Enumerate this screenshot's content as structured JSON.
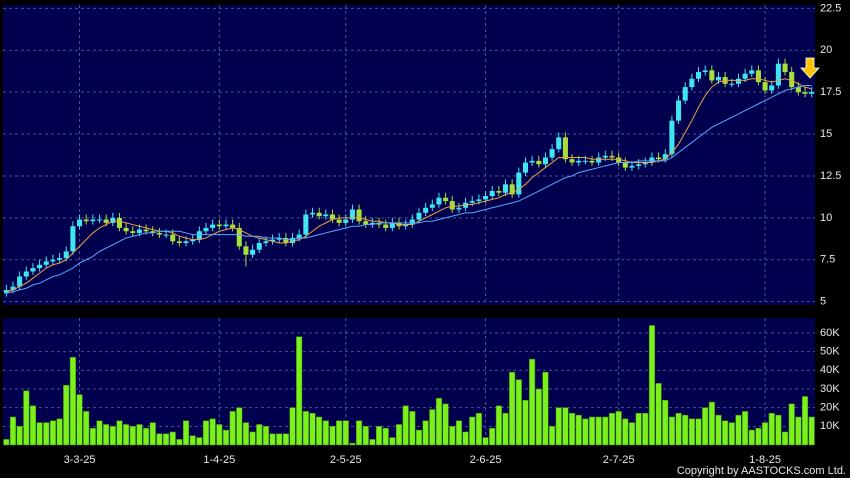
{
  "chart_data": {
    "type": "candlestick",
    "categories": [
      null,
      null,
      null,
      null,
      null,
      null,
      null,
      null,
      null,
      null,
      null,
      "3-3-25",
      null,
      null,
      null,
      null,
      null,
      null,
      null,
      null,
      null,
      null,
      null,
      null,
      null,
      null,
      null,
      null,
      null,
      null,
      null,
      null,
      "1-4-25",
      null,
      null,
      null,
      null,
      null,
      null,
      null,
      null,
      null,
      null,
      null,
      null,
      null,
      null,
      null,
      null,
      null,
      null,
      "2-5-25",
      null,
      null,
      null,
      null,
      null,
      null,
      null,
      null,
      null,
      null,
      null,
      null,
      null,
      null,
      null,
      null,
      null,
      null,
      null,
      null,
      "2-6-25",
      null,
      null,
      null,
      null,
      null,
      null,
      null,
      null,
      null,
      null,
      null,
      null,
      null,
      null,
      null,
      null,
      null,
      null,
      null,
      "2-7-25",
      null,
      null,
      null,
      null,
      null,
      null,
      null,
      null,
      null,
      null,
      null,
      null,
      null,
      null,
      null,
      null,
      null,
      null,
      null,
      null,
      null,
      "1-8-25",
      null,
      null,
      null,
      null,
      null,
      null,
      null
    ],
    "open": [
      5.5,
      5.7,
      5.9,
      6.5,
      6.8,
      7.0,
      7.2,
      7.4,
      7.5,
      7.6,
      8.0,
      9.5,
      9.9,
      9.8,
      9.9,
      9.9,
      9.7,
      10.0,
      9.4,
      9.2,
      9.1,
      9.3,
      9.2,
      9.1,
      9.0,
      9.0,
      8.6,
      8.5,
      8.6,
      8.7,
      9.2,
      9.4,
      9.6,
      9.5,
      9.6,
      9.4,
      8.3,
      7.8,
      8.1,
      8.5,
      8.6,
      8.7,
      8.8,
      8.5,
      8.8,
      9.0,
      10.2,
      10.3,
      10.1,
      10.2,
      9.9,
      9.7,
      9.9,
      10.5,
      9.8,
      9.6,
      9.7,
      9.6,
      9.4,
      9.7,
      9.5,
      9.6,
      9.9,
      10.3,
      10.6,
      10.8,
      11.2,
      11.0,
      10.5,
      10.6,
      10.9,
      11.0,
      11.1,
      11.3,
      11.6,
      11.5,
      12.0,
      11.4,
      12.7,
      13.3,
      13.4,
      13.2,
      13.6,
      14.1,
      14.8,
      13.5,
      13.3,
      13.4,
      13.4,
      13.3,
      13.6,
      13.7,
      13.6,
      13.3,
      13.0,
      13.1,
      13.2,
      13.3,
      13.6,
      13.5,
      13.8,
      15.8,
      17.0,
      17.8,
      18.3,
      18.7,
      18.8,
      18.2,
      18.4,
      18.0,
      18.0,
      18.3,
      18.6,
      18.8,
      18.1,
      17.6,
      17.9,
      19.2,
      18.7,
      17.8,
      17.5,
      17.4
    ],
    "high": [
      6.0,
      6.2,
      6.8,
      7.1,
      7.3,
      7.5,
      7.7,
      7.8,
      7.9,
      8.3,
      9.8,
      10.2,
      10.2,
      10.2,
      10.2,
      10.2,
      10.3,
      10.3,
      9.7,
      9.5,
      9.6,
      9.6,
      9.5,
      9.4,
      9.3,
      9.3,
      8.9,
      8.9,
      9.0,
      9.5,
      9.7,
      9.9,
      9.9,
      9.9,
      9.9,
      9.7,
      8.6,
      8.4,
      8.8,
      8.9,
      9.0,
      9.1,
      9.1,
      9.1,
      9.3,
      10.5,
      10.6,
      10.6,
      10.5,
      10.5,
      10.2,
      10.2,
      10.8,
      10.8,
      10.1,
      10.0,
      10.0,
      9.9,
      10.0,
      10.0,
      9.9,
      10.2,
      10.6,
      10.9,
      11.1,
      11.5,
      11.5,
      11.3,
      10.9,
      11.2,
      11.3,
      11.4,
      11.6,
      11.9,
      11.9,
      12.3,
      12.3,
      13.0,
      13.6,
      13.7,
      13.7,
      13.9,
      14.4,
      15.1,
      15.1,
      13.8,
      13.7,
      13.7,
      13.7,
      13.9,
      14.0,
      14.0,
      13.9,
      13.6,
      13.4,
      13.5,
      13.6,
      13.9,
      13.9,
      14.1,
      16.1,
      17.3,
      18.1,
      18.6,
      19.0,
      19.1,
      19.1,
      18.7,
      18.7,
      18.3,
      18.6,
      18.9,
      19.1,
      19.1,
      18.4,
      18.2,
      19.5,
      19.5,
      19.0,
      18.1,
      17.8,
      17.8
    ],
    "low": [
      5.3,
      5.5,
      5.7,
      6.3,
      6.6,
      6.8,
      7.0,
      7.2,
      7.3,
      7.4,
      7.8,
      9.3,
      9.6,
      9.6,
      9.7,
      9.5,
      9.5,
      9.2,
      9.0,
      8.9,
      8.9,
      9.0,
      8.9,
      8.8,
      8.8,
      8.4,
      8.3,
      8.3,
      8.4,
      8.5,
      9.0,
      9.2,
      9.3,
      9.3,
      9.2,
      8.1,
      7.1,
      7.6,
      7.9,
      8.3,
      8.4,
      8.5,
      8.3,
      8.3,
      8.6,
      8.8,
      10.0,
      9.9,
      9.9,
      9.7,
      9.5,
      9.5,
      9.7,
      9.6,
      9.4,
      9.4,
      9.4,
      9.2,
      9.2,
      9.3,
      9.3,
      9.4,
      9.7,
      10.1,
      10.4,
      10.6,
      10.8,
      10.3,
      10.3,
      10.4,
      10.7,
      10.8,
      10.9,
      11.1,
      11.3,
      11.3,
      11.2,
      11.2,
      12.5,
      13.1,
      13.0,
      13.0,
      13.4,
      13.9,
      13.3,
      13.1,
      13.1,
      13.2,
      13.1,
      13.1,
      13.4,
      13.4,
      13.1,
      12.8,
      12.8,
      12.9,
      13.0,
      13.1,
      13.3,
      13.3,
      13.6,
      15.6,
      16.8,
      17.6,
      18.1,
      18.5,
      18.0,
      18.0,
      17.8,
      17.8,
      17.8,
      18.1,
      18.4,
      17.9,
      17.4,
      17.4,
      17.7,
      18.5,
      17.6,
      17.3,
      17.2,
      17.2
    ],
    "close": [
      5.7,
      5.9,
      6.5,
      6.8,
      7.0,
      7.2,
      7.4,
      7.5,
      7.6,
      8.0,
      9.5,
      9.9,
      9.8,
      9.9,
      9.9,
      9.7,
      10.0,
      9.4,
      9.2,
      9.1,
      9.3,
      9.2,
      9.1,
      9.0,
      9.0,
      8.6,
      8.5,
      8.6,
      8.7,
      9.2,
      9.4,
      9.6,
      9.5,
      9.6,
      9.4,
      8.3,
      7.8,
      8.1,
      8.5,
      8.6,
      8.7,
      8.8,
      8.5,
      8.8,
      9.0,
      10.2,
      10.3,
      10.1,
      10.2,
      9.9,
      9.7,
      9.9,
      10.5,
      9.8,
      9.6,
      9.7,
      9.6,
      9.4,
      9.7,
      9.5,
      9.6,
      9.9,
      10.3,
      10.6,
      10.8,
      11.2,
      11.0,
      10.5,
      10.6,
      10.9,
      11.0,
      11.1,
      11.3,
      11.6,
      11.5,
      12.0,
      11.4,
      12.7,
      13.3,
      13.4,
      13.2,
      13.6,
      14.1,
      14.8,
      13.5,
      13.3,
      13.4,
      13.4,
      13.3,
      13.6,
      13.7,
      13.6,
      13.3,
      13.0,
      13.1,
      13.2,
      13.3,
      13.6,
      13.5,
      13.8,
      15.8,
      17.0,
      17.8,
      18.3,
      18.7,
      18.8,
      18.2,
      18.4,
      18.0,
      18.0,
      18.3,
      18.6,
      18.8,
      18.1,
      17.6,
      17.9,
      19.2,
      18.7,
      17.8,
      17.5,
      17.4,
      17.5
    ],
    "up_color": "#3fe6f2",
    "down_color": "#a6e03a",
    "moving_averages": [
      {
        "color": "#f0a040",
        "values": [
          5.6,
          5.7,
          5.9,
          6.1,
          6.4,
          6.7,
          7.0,
          7.2,
          7.3,
          7.5,
          7.9,
          8.3,
          8.7,
          9.1,
          9.4,
          9.6,
          9.8,
          9.8,
          9.7,
          9.6,
          9.5,
          9.4,
          9.3,
          9.2,
          9.2,
          9.1,
          8.9,
          8.8,
          8.7,
          8.7,
          8.8,
          9.0,
          9.2,
          9.3,
          9.4,
          9.3,
          9.1,
          8.9,
          8.8,
          8.7,
          8.6,
          8.5,
          8.5,
          8.6,
          8.7,
          8.9,
          9.2,
          9.5,
          9.7,
          9.9,
          10.0,
          10.0,
          10.0,
          10.0,
          9.9,
          9.8,
          9.8,
          9.7,
          9.7,
          9.6,
          9.6,
          9.6,
          9.8,
          10.0,
          10.2,
          10.4,
          10.6,
          10.7,
          10.7,
          10.8,
          10.8,
          10.9,
          11.0,
          11.1,
          11.2,
          11.4,
          11.5,
          11.7,
          12.0,
          12.4,
          12.7,
          13.0,
          13.3,
          13.6,
          13.6,
          13.6,
          13.6,
          13.6,
          13.5,
          13.5,
          13.5,
          13.5,
          13.5,
          13.4,
          13.3,
          13.3,
          13.3,
          13.3,
          13.4,
          13.5,
          13.9,
          14.4,
          15.1,
          15.8,
          16.6,
          17.3,
          17.8,
          18.1,
          18.2,
          18.2,
          18.2,
          18.2,
          18.3,
          18.3,
          18.2,
          18.1,
          18.2,
          18.3,
          18.2,
          18.0,
          17.8,
          17.7
        ]
      },
      {
        "color": "#5aa8ff",
        "values": [
          5.5,
          5.6,
          5.7,
          5.8,
          6.0,
          6.1,
          6.3,
          6.5,
          6.6,
          6.8,
          7.0,
          7.3,
          7.5,
          7.7,
          8.0,
          8.2,
          8.4,
          8.6,
          8.8,
          8.9,
          9.0,
          9.1,
          9.1,
          9.2,
          9.2,
          9.2,
          9.2,
          9.1,
          9.0,
          9.0,
          9.0,
          9.0,
          9.0,
          9.0,
          9.0,
          9.0,
          8.9,
          8.9,
          8.9,
          8.8,
          8.8,
          8.8,
          8.7,
          8.7,
          8.8,
          8.8,
          8.9,
          9.0,
          9.1,
          9.2,
          9.3,
          9.4,
          9.5,
          9.5,
          9.6,
          9.6,
          9.7,
          9.7,
          9.7,
          9.7,
          9.7,
          9.7,
          9.7,
          9.8,
          9.8,
          9.9,
          10.0,
          10.1,
          10.2,
          10.3,
          10.3,
          10.4,
          10.5,
          10.6,
          10.7,
          10.8,
          10.9,
          11.0,
          11.2,
          11.4,
          11.6,
          11.8,
          12.0,
          12.2,
          12.4,
          12.5,
          12.7,
          12.8,
          12.9,
          13.0,
          13.1,
          13.2,
          13.3,
          13.3,
          13.3,
          13.4,
          13.4,
          13.4,
          13.4,
          13.4,
          13.6,
          13.9,
          14.2,
          14.5,
          14.8,
          15.1,
          15.4,
          15.6,
          15.8,
          16.0,
          16.2,
          16.4,
          16.6,
          16.8,
          17.0,
          17.2,
          17.4,
          17.6,
          17.7,
          17.8,
          17.9,
          17.9
        ]
      }
    ],
    "ylim": [
      4.8,
      22.7
    ],
    "yticks": [
      5,
      7.5,
      10,
      12.5,
      15,
      17.5,
      20,
      22.5
    ],
    "grid": true,
    "volume": {
      "color": "#7cf01a",
      "values": [
        3000,
        15000,
        10000,
        29000,
        21000,
        12000,
        12000,
        13000,
        14000,
        32000,
        47000,
        27000,
        18000,
        9000,
        13000,
        11000,
        10000,
        13000,
        11000,
        10000,
        11000,
        9000,
        12000,
        6000,
        6000,
        7000,
        3000,
        13000,
        5000,
        4000,
        13000,
        14000,
        11000,
        8000,
        18000,
        20000,
        12000,
        7000,
        11000,
        10000,
        6000,
        6000,
        6000,
        20000,
        58000,
        18000,
        17000,
        15000,
        13000,
        10000,
        13000,
        13000,
        1000,
        13000,
        10000,
        3000,
        10000,
        9000,
        4000,
        11000,
        21000,
        18000,
        8000,
        13000,
        19000,
        25000,
        22000,
        10000,
        13000,
        7000,
        15000,
        17000,
        4000,
        9000,
        21000,
        17000,
        39000,
        35000,
        24000,
        46000,
        30000,
        39000,
        10000,
        20000,
        20000,
        17000,
        16000,
        14000,
        15000,
        15000,
        15000,
        17000,
        18000,
        14000,
        12000,
        17000,
        17000,
        64000,
        33000,
        24000,
        15000,
        17000,
        16000,
        14000,
        14000,
        20000,
        23000,
        16000,
        13000,
        12000,
        16000,
        18000,
        8000,
        9000,
        12000,
        17000,
        16000,
        7000,
        22000,
        15000,
        26000,
        15000
      ],
      "ylim": [
        0,
        68000
      ],
      "yticks": [
        {
          "value": 10000,
          "label": "10K"
        },
        {
          "value": 20000,
          "label": "20K"
        },
        {
          "value": 30000,
          "label": "30K"
        },
        {
          "value": 40000,
          "label": "40K"
        },
        {
          "value": 50000,
          "label": "50K"
        },
        {
          "value": 60000,
          "label": "60K"
        }
      ]
    },
    "copyright": "Copyright by AASTOCKS.com Ltd."
  }
}
